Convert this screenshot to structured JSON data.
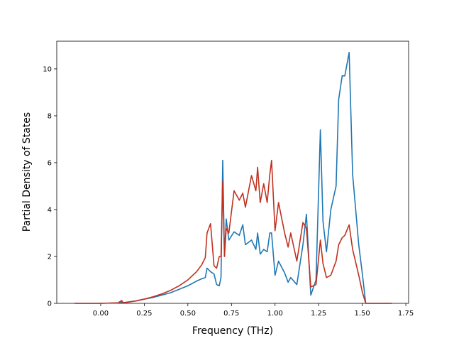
{
  "chart_data": {
    "type": "line",
    "xlabel": "Frequency (THz)",
    "ylabel": "Partial Density of States",
    "x": [
      -0.15,
      0.0,
      0.1,
      0.12,
      0.13,
      0.2,
      0.25,
      0.3,
      0.35,
      0.4,
      0.45,
      0.5,
      0.55,
      0.58,
      0.6,
      0.61,
      0.63,
      0.65,
      0.665,
      0.68,
      0.69,
      0.7,
      0.71,
      0.72,
      0.735,
      0.765,
      0.795,
      0.815,
      0.83,
      0.865,
      0.89,
      0.9,
      0.915,
      0.935,
      0.955,
      0.97,
      0.98,
      1.0,
      1.02,
      1.055,
      1.075,
      1.09,
      1.125,
      1.16,
      1.18,
      1.205,
      1.235,
      1.26,
      1.275,
      1.295,
      1.32,
      1.35,
      1.365,
      1.385,
      1.4,
      1.425,
      1.445,
      1.48,
      1.5,
      1.52,
      1.67
    ],
    "series": [
      {
        "color": "#1f77b4",
        "values": [
          0,
          0,
          0.02,
          0.05,
          0.03,
          0.1,
          0.18,
          0.25,
          0.35,
          0.45,
          0.6,
          0.75,
          0.95,
          1.05,
          1.1,
          1.5,
          1.35,
          1.25,
          0.8,
          0.75,
          1.1,
          6.1,
          2.0,
          3.6,
          2.7,
          3.05,
          2.9,
          3.35,
          2.5,
          2.7,
          2.3,
          3.0,
          2.1,
          2.3,
          2.2,
          3.0,
          3.0,
          1.2,
          1.8,
          1.3,
          0.9,
          1.1,
          0.8,
          2.5,
          3.8,
          0.35,
          1.0,
          7.4,
          3.5,
          2.2,
          4.0,
          5.0,
          8.7,
          9.7,
          9.7,
          10.7,
          5.5,
          2.5,
          1.3,
          0,
          0
        ]
      },
      {
        "color": "#c0311f",
        "values": [
          0,
          0,
          0.02,
          0.12,
          0.02,
          0.1,
          0.18,
          0.28,
          0.4,
          0.55,
          0.75,
          1.0,
          1.35,
          1.65,
          1.95,
          3.0,
          3.4,
          1.6,
          1.5,
          2.0,
          2.0,
          5.2,
          2.0,
          3.2,
          3.0,
          4.8,
          4.4,
          4.7,
          4.1,
          5.45,
          4.8,
          5.8,
          4.3,
          5.1,
          4.3,
          5.5,
          6.1,
          3.1,
          4.3,
          3.0,
          2.4,
          3.0,
          1.8,
          3.45,
          3.2,
          0.7,
          0.8,
          2.7,
          1.7,
          1.1,
          1.2,
          1.8,
          2.5,
          2.8,
          2.9,
          3.35,
          2.3,
          1.2,
          0.5,
          0,
          0
        ]
      }
    ],
    "xlim": [
      -0.252,
      1.766
    ],
    "ylim": [
      0,
      11.18
    ],
    "xticks": [
      {
        "value": 0,
        "label": "0.00"
      },
      {
        "value": 0.25,
        "label": "0.25"
      },
      {
        "value": 0.5,
        "label": "0.50"
      },
      {
        "value": 0.75,
        "label": "0.75"
      },
      {
        "value": 1,
        "label": "1.00"
      },
      {
        "value": 1.25,
        "label": "1.25"
      },
      {
        "value": 1.5,
        "label": "1.50"
      },
      {
        "value": 1.75,
        "label": "1.75"
      }
    ],
    "yticks": [
      0,
      2,
      4,
      6,
      8,
      10
    ]
  }
}
